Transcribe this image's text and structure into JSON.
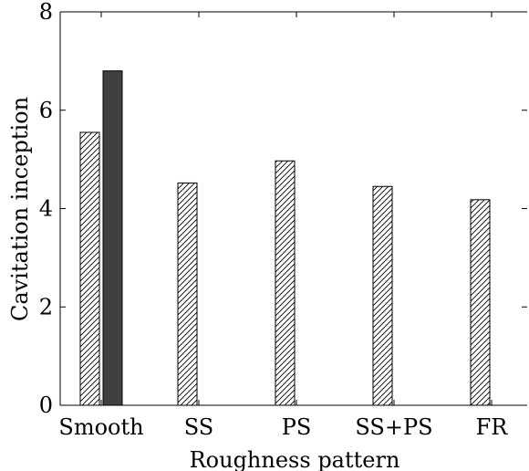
{
  "chart_data": {
    "type": "bar",
    "title": "",
    "xlabel": "Roughness pattern",
    "ylabel": "Cavitation inception",
    "categories": [
      "Smooth",
      "SS",
      "PS",
      "SS+PS",
      "FR"
    ],
    "ylim": [
      0,
      8
    ],
    "yticks": [
      0,
      2,
      4,
      6,
      8
    ],
    "series": [
      {
        "values": [
          5.55,
          4.52,
          4.97,
          4.45,
          4.18
        ],
        "fill": "hatched",
        "color": "#000000"
      },
      {
        "values": [
          6.8,
          null,
          null,
          null,
          null
        ],
        "fill": "solid",
        "color": "#404040"
      }
    ],
    "grid": false,
    "legend": "none"
  }
}
